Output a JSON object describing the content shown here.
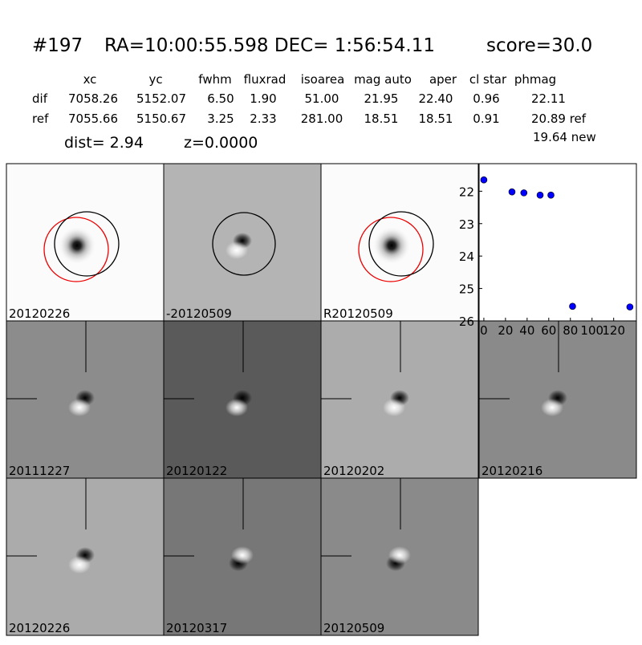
{
  "header": {
    "id": "#197",
    "coords": "RA=10:00:55.598 DEC= 1:56:54.11",
    "score": "score=30.0"
  },
  "table": {
    "columns": [
      "xc",
      "yc",
      "fwhm",
      "fluxrad",
      "isoarea",
      "mag auto",
      "aper",
      "cl star",
      "phmag"
    ],
    "rows": [
      [
        "dif",
        "7058.26",
        "5152.07",
        "6.50",
        "1.90",
        "51.00",
        "21.95",
        "22.40",
        "0.96",
        "22.11"
      ],
      [
        "ref",
        "7055.66",
        "5150.67",
        "3.25",
        "2.33",
        "281.00",
        "18.51",
        "18.51",
        "0.91",
        "20.89 ref"
      ]
    ],
    "extra": "19.64 new"
  },
  "dist": "dist=  2.94",
  "z": "z=0.0000",
  "stamps": [
    "20120226",
    "-20120509",
    "R20120509",
    "20111227",
    "20120122",
    "20120202",
    "20120216",
    "20120226",
    "20120317",
    "20120509"
  ],
  "chart_data": {
    "type": "scatter",
    "x": [
      0,
      26,
      37,
      52,
      62,
      82,
      135
    ],
    "values": [
      21.65,
      22.02,
      22.05,
      22.12,
      22.12,
      25.55,
      25.57
    ],
    "color": "#0000ff",
    "xlim": [
      -4.4,
      141
    ],
    "ylim": [
      26,
      21.15
    ],
    "xticks": [
      0,
      20,
      40,
      60,
      80,
      100,
      120
    ],
    "yticks": [
      22,
      23,
      24,
      25,
      26
    ]
  }
}
